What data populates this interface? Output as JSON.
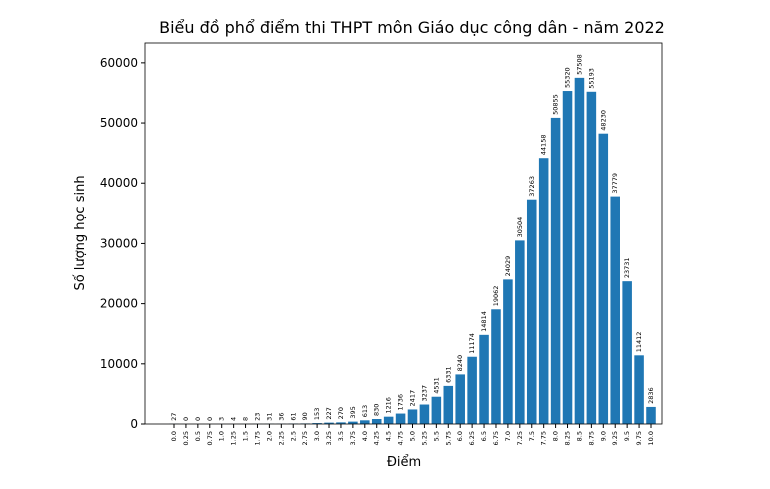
{
  "chart_data": {
    "type": "bar",
    "title": "Biểu đồ phổ điểm thi THPT môn Giáo dục công dân - năm 2022",
    "x_label": "Điểm",
    "y_label": "Số lượng học sinh",
    "categories": [
      "0.0",
      "0.25",
      "0.5",
      "0.75",
      "1.0",
      "1.25",
      "1.5",
      "1.75",
      "2.0",
      "2.25",
      "2.5",
      "2.75",
      "3.0",
      "3.25",
      "3.5",
      "3.75",
      "4.0",
      "4.25",
      "4.5",
      "4.75",
      "5.0",
      "5.25",
      "5.5",
      "5.75",
      "6.0",
      "6.25",
      "6.5",
      "6.75",
      "7.0",
      "7.25",
      "7.5",
      "7.75",
      "8.0",
      "8.25",
      "8.5",
      "8.75",
      "9.0",
      "9.25",
      "9.5",
      "9.75",
      "10.0"
    ],
    "values": [
      27,
      0,
      0,
      0,
      3,
      4,
      8,
      23,
      31,
      36,
      61,
      90,
      153,
      227,
      270,
      395,
      613,
      830,
      1216,
      1736,
      2417,
      3237,
      4531,
      6331,
      8240,
      11174,
      14814,
      19062,
      24029,
      30504,
      37263,
      44158,
      50855,
      55320,
      57508,
      55193,
      48230,
      37779,
      23731,
      11412,
      2836
    ],
    "color": "#1f77b4",
    "ylim": [
      0,
      63300
    ],
    "yticks": [
      0,
      10000,
      20000,
      30000,
      40000,
      50000,
      60000
    ]
  }
}
